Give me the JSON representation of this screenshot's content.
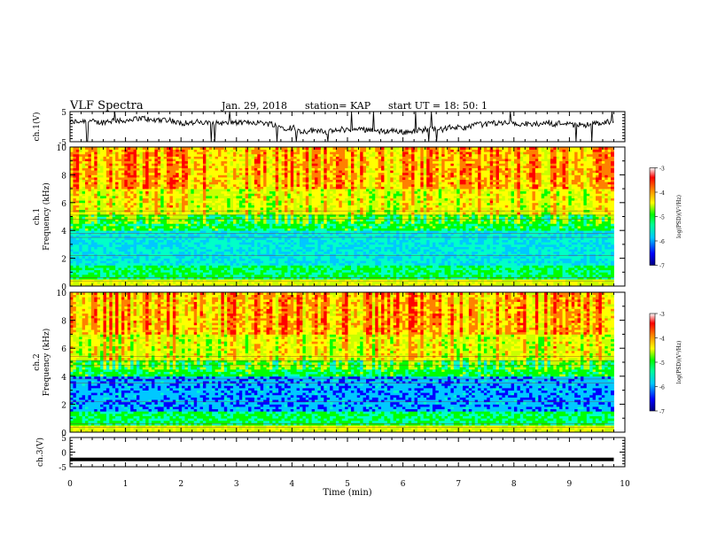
{
  "header": {
    "title": "VLF Spectra",
    "date": "Jan. 29, 2018",
    "station": "station= KAP",
    "start": "start UT =   18: 50: 1"
  },
  "chart_data": [
    {
      "type": "line",
      "ylabel": "ch.1(V)",
      "ylim": [
        -5,
        5
      ],
      "yticks": [
        "5",
        "-5"
      ],
      "x_range_min": [
        0,
        10
      ],
      "trace_color": "#000000"
    },
    {
      "type": "heatmap",
      "ylabel": "ch.1\nFrequency (kHz)",
      "ylim": [
        0,
        10
      ],
      "yticks": [
        "0",
        "2",
        "4",
        "6",
        "8",
        "10"
      ],
      "colorbar": {
        "label": "log(PSD)(V²/Hz)",
        "range": [
          -7,
          -3
        ],
        "ticks": [
          "-3",
          "-4",
          "-5",
          "-6",
          "-7"
        ]
      }
    },
    {
      "type": "heatmap",
      "ylabel": "ch.2\nFrequency (kHz)",
      "ylim": [
        0,
        10
      ],
      "yticks": [
        "0",
        "2",
        "4",
        "6",
        "8",
        "10"
      ],
      "colorbar": {
        "label": "log(PSD)(V²/Hz)",
        "range": [
          -7,
          -3
        ],
        "ticks": [
          "-3",
          "-4",
          "-5",
          "-6",
          "-7"
        ]
      }
    },
    {
      "type": "line",
      "ylabel": "ch.3(V)",
      "ylim": [
        -5,
        5
      ],
      "yticks": [
        "5",
        "0",
        "-5"
      ],
      "constant_value": -2.5,
      "trace_color": "#000000"
    }
  ],
  "xaxis": {
    "label": "Time (min)",
    "range": [
      0,
      10
    ],
    "ticks": [
      "0",
      "1",
      "2",
      "3",
      "4",
      "5",
      "6",
      "7",
      "8",
      "9",
      "10"
    ],
    "data_end": 9.8
  },
  "colors": {
    "colormap": [
      "#000080",
      "#0000ff",
      "#00c8ff",
      "#00ffc8",
      "#00ff00",
      "#c8ff00",
      "#ffff00",
      "#ff8000",
      "#ff0000",
      "#ffffff"
    ]
  }
}
